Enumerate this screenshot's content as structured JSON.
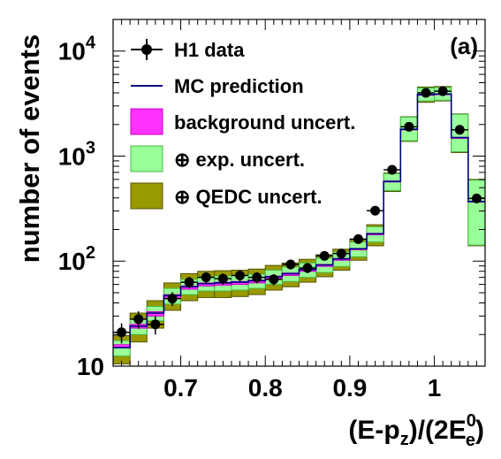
{
  "chart_data": {
    "type": "histogram",
    "xlabel": {
      "main": "(E-p",
      "sub1": "z",
      "mid": ")/(2E",
      "sup": "0",
      "sub2": "e",
      "end": ")"
    },
    "ylabel": "number of events",
    "panel_label": "(a)",
    "xlim": [
      0.62,
      1.06
    ],
    "ylim": [
      10,
      20000
    ],
    "log_y": true,
    "x_ticks": [
      {
        "value": 0.7,
        "label": "0.7"
      },
      {
        "value": 0.8,
        "label": "0.8"
      },
      {
        "value": 0.9,
        "label": "0.9"
      },
      {
        "value": 1.0,
        "label": "1"
      }
    ],
    "y_ticks": [
      {
        "value": 10,
        "base": "10",
        "exp": ""
      },
      {
        "value": 100,
        "base": "10",
        "exp": "2"
      },
      {
        "value": 1000,
        "base": "10",
        "exp": "3"
      },
      {
        "value": 10000,
        "base": "10",
        "exp": "4"
      }
    ],
    "bin_edges": [
      0.62,
      0.64,
      0.66,
      0.68,
      0.7,
      0.72,
      0.74,
      0.76,
      0.78,
      0.8,
      0.82,
      0.84,
      0.86,
      0.88,
      0.9,
      0.92,
      0.94,
      0.96,
      0.98,
      1.0,
      1.02,
      1.04,
      1.06
    ],
    "data": [
      21,
      28,
      25,
      44,
      63,
      70,
      68,
      73,
      70,
      67,
      93,
      86,
      112,
      118,
      162,
      302,
      740,
      1900,
      4000,
      4150,
      1780,
      395
    ],
    "mc_prediction": [
      15,
      24,
      32,
      47,
      57,
      61,
      62,
      63,
      65,
      71,
      76,
      83,
      92,
      105,
      131,
      182,
      575,
      1800,
      3850,
      3900,
      1500,
      370
    ],
    "exp_uncert_low": [
      12.5,
      20,
      27,
      39,
      48,
      52,
      52,
      53,
      55,
      60,
      64,
      70,
      78,
      89,
      110,
      152,
      470,
      1400,
      3350,
      3400,
      1100,
      142
    ],
    "exp_uncert_high": [
      17.5,
      28,
      37,
      55,
      67,
      71,
      72,
      73,
      75,
      82,
      88,
      96,
      107,
      122,
      152,
      212,
      680,
      2350,
      4450,
      4500,
      2500,
      590
    ],
    "qedc_uncert_low": [
      10.5,
      17,
      23,
      34,
      42,
      45,
      45,
      46,
      48,
      53,
      57,
      63,
      71,
      82,
      102,
      140,
      460,
      1380,
      3250,
      3350,
      1080,
      140
    ],
    "qedc_uncert_high": [
      19.5,
      32,
      42,
      62,
      76,
      80,
      81,
      82,
      84,
      91,
      96,
      104,
      115,
      130,
      161,
      222,
      690,
      2370,
      4550,
      4600,
      2520,
      600
    ],
    "background_uncert_low": [
      15,
      23,
      30,
      44,
      54,
      58,
      59,
      60,
      62,
      68,
      73,
      80,
      89,
      102,
      128,
      178,
      570,
      1790,
      3830,
      3880,
      1495,
      368
    ],
    "background_uncert_high": [
      16,
      25,
      33,
      48,
      58,
      62,
      63,
      64,
      66,
      72,
      77,
      84,
      93,
      106,
      132,
      184,
      578,
      1810,
      3870,
      3920,
      1505,
      372
    ],
    "legend": [
      {
        "label": "H1 data",
        "style": "marker"
      },
      {
        "label": "MC prediction",
        "style": "line"
      },
      {
        "label": "background uncert.",
        "style": "box-background"
      },
      {
        "label": "⊕ exp. uncert.",
        "style": "box-exp"
      },
      {
        "label": "⊕ QEDC uncert.",
        "style": "box-qedc"
      }
    ],
    "legend_placement": "top-left",
    "colors": {
      "mc_line": "#000080",
      "background": "#ff33ff",
      "background_edge": "#cc00cc",
      "exp": "#99ff99",
      "exp_edge": "#44bb44",
      "qedc": "#999900",
      "qedc_edge": "#555500",
      "data": "#000000"
    }
  }
}
